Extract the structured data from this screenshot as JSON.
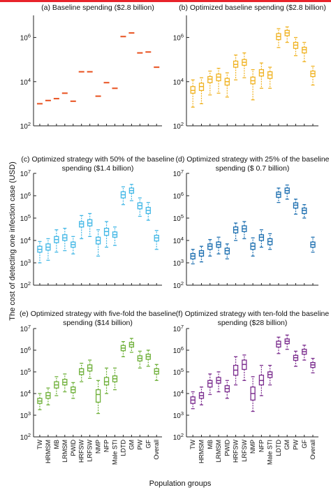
{
  "figure": {
    "ylabel": "The cost of detecting one infection case (USD)",
    "xlabel": "Population groups",
    "top_bar_color": "#e8232b"
  },
  "chart_data": [
    {
      "id": "a",
      "type": "scatter",
      "marker": "dash",
      "title": "(a) Baseline spending ($2.8 billion)",
      "color": "#e8501e",
      "ylog": true,
      "ylim": [
        100,
        10000000
      ],
      "yticks": [
        {
          "v": 100,
          "exp": "2"
        },
        {
          "v": 10000,
          "exp": "4"
        },
        {
          "v": 1000000,
          "exp": "6"
        }
      ],
      "categories": [
        "TW",
        "HRMSM",
        "MB",
        "LRMSM",
        "PWID",
        "HRFSW",
        "LRFSW",
        "NMP",
        "NFP",
        "Male STI",
        "LDTD",
        "GM",
        "PW",
        "GF",
        "Overall"
      ],
      "values": [
        1000,
        1400,
        1700,
        3000,
        1300,
        28000,
        28000,
        2200,
        9000,
        5000,
        1100000,
        1600000,
        200000,
        220000,
        45000
      ]
    },
    {
      "id": "b",
      "type": "boxplot",
      "title": "(b) Optimized baseline spending ($2.8 billion)",
      "color": "#f0b323",
      "ylog": true,
      "ylim": [
        100,
        10000000
      ],
      "yticks": [
        {
          "v": 100,
          "exp": "2"
        },
        {
          "v": 10000,
          "exp": "4"
        },
        {
          "v": 1000000,
          "exp": "6"
        }
      ],
      "categories": [
        "TW",
        "HRMSM",
        "MB",
        "LRMSM",
        "PWID",
        "HRFSW",
        "LRFSW",
        "NMP",
        "NFP",
        "Male STI",
        "LDTD",
        "GM",
        "PW",
        "GF",
        "Overall"
      ],
      "boxes": [
        [
          700,
          3000,
          4000,
          6000,
          12000
        ],
        [
          1000,
          4000,
          6000,
          8500,
          15000
        ],
        [
          2500,
          9000,
          13000,
          17000,
          30000
        ],
        [
          3000,
          11000,
          16000,
          22000,
          40000
        ],
        [
          2000,
          7000,
          10000,
          14000,
          25000
        ],
        [
          12000,
          45000,
          60000,
          85000,
          160000
        ],
        [
          15000,
          55000,
          75000,
          100000,
          200000
        ],
        [
          1500,
          8000,
          11000,
          16000,
          35000
        ],
        [
          5000,
          18000,
          25000,
          35000,
          70000
        ],
        [
          5000,
          14000,
          20000,
          28000,
          45000
        ],
        [
          350000,
          800000,
          1100000,
          1500000,
          2500000
        ],
        [
          600000,
          1200000,
          1600000,
          2100000,
          3000000
        ],
        [
          150000,
          320000,
          450000,
          600000,
          1000000
        ],
        [
          80000,
          200000,
          280000,
          360000,
          600000
        ],
        [
          7000,
          17000,
          23000,
          30000,
          50000
        ]
      ]
    },
    {
      "id": "c",
      "type": "boxplot",
      "title": "(c) Optimized strategy with 50% of the baseline spending ($1.4 billion)",
      "title_lines": [
        "(c) Optimized strategy with 50% of the baseline",
        "spending ($1.4 billion)"
      ],
      "color": "#44b8e6",
      "ylog": true,
      "ylim": [
        100,
        10000000
      ],
      "yticks": [
        {
          "v": 100,
          "exp": "2"
        },
        {
          "v": 1000,
          "exp": "3"
        },
        {
          "v": 10000,
          "exp": "4"
        },
        {
          "v": 100000,
          "exp": "5"
        },
        {
          "v": 1000000,
          "exp": "6"
        },
        {
          "v": 10000000,
          "exp": "7"
        }
      ],
      "categories": [
        "TW",
        "HRMSM",
        "MB",
        "LRMSM",
        "PWID",
        "HRFSW",
        "LRFSW",
        "NMP",
        "NFP",
        "Male STI",
        "LDTD",
        "GM",
        "PW",
        "GF",
        "Overall"
      ],
      "boxes": [
        [
          1000,
          3000,
          4000,
          5500,
          9000
        ],
        [
          1300,
          3700,
          5000,
          7000,
          12000
        ],
        [
          3000,
          8000,
          11000,
          15000,
          30000
        ],
        [
          3500,
          10000,
          13000,
          18000,
          35000
        ],
        [
          2500,
          5000,
          6500,
          8500,
          15000
        ],
        [
          12000,
          40000,
          55000,
          70000,
          130000
        ],
        [
          15000,
          45000,
          60000,
          85000,
          160000
        ],
        [
          2000,
          7000,
          10000,
          14000,
          30000
        ],
        [
          5000,
          17000,
          25000,
          35000,
          70000
        ],
        [
          6000,
          14000,
          18000,
          24000,
          40000
        ],
        [
          400000,
          800000,
          1100000,
          1500000,
          2500000
        ],
        [
          600000,
          1300000,
          1700000,
          2200000,
          3200000
        ],
        [
          120000,
          260000,
          360000,
          480000,
          800000
        ],
        [
          80000,
          160000,
          220000,
          300000,
          500000
        ],
        [
          4000,
          9500,
          13000,
          17000,
          28000
        ]
      ]
    },
    {
      "id": "d",
      "type": "boxplot",
      "title": "(d) Optimized strategy with 25% of the baseline spending ($ 0.7 billion)",
      "title_lines": [
        "(d) Optimized strategy with 25% of the baseline",
        "spending ($ 0.7 billion)"
      ],
      "color": "#1d6fb0",
      "ylog": true,
      "ylim": [
        100,
        10000000
      ],
      "yticks": [
        {
          "v": 100,
          "exp": "2"
        },
        {
          "v": 1000,
          "exp": "3"
        },
        {
          "v": 10000,
          "exp": "4"
        },
        {
          "v": 100000,
          "exp": "5"
        },
        {
          "v": 1000000,
          "exp": "6"
        },
        {
          "v": 10000000,
          "exp": "7"
        }
      ],
      "categories": [
        "TW",
        "HRMSM",
        "MB",
        "LRMSM",
        "PWID",
        "HRFSW",
        "LRFSW",
        "NMP",
        "NFP",
        "Male STI",
        "LDTD",
        "GM",
        "PW",
        "GF",
        "Overall"
      ],
      "boxes": [
        [
          900,
          1500,
          2000,
          2600,
          4000
        ],
        [
          1100,
          2000,
          2700,
          3500,
          5500
        ],
        [
          2000,
          4000,
          5500,
          7000,
          11000
        ],
        [
          2500,
          5000,
          6500,
          8500,
          14000
        ],
        [
          1500,
          2500,
          3500,
          4500,
          7000
        ],
        [
          10000,
          22000,
          30000,
          40000,
          60000
        ],
        [
          12000,
          25000,
          33000,
          45000,
          70000
        ],
        [
          2000,
          4000,
          5500,
          7500,
          13000
        ],
        [
          5000,
          10000,
          14000,
          18000,
          30000
        ],
        [
          4000,
          6500,
          9000,
          12000,
          20000
        ],
        [
          500000,
          850000,
          1150000,
          1450000,
          2200000
        ],
        [
          700000,
          1300000,
          1700000,
          2200000,
          3000000
        ],
        [
          150000,
          280000,
          380000,
          480000,
          700000
        ],
        [
          100000,
          160000,
          220000,
          280000,
          400000
        ],
        [
          3000,
          5000,
          6500,
          8500,
          14000
        ]
      ]
    },
    {
      "id": "e",
      "type": "boxplot",
      "title": "(e) Optimized strategy with five-fold the baseline spending ($14 billion)",
      "title_lines": [
        "(e) Optimized strategy with five-fold the baseline",
        "spending ($14 billion)"
      ],
      "color": "#6fb03a",
      "ylog": true,
      "ylim": [
        100,
        10000000
      ],
      "yticks": [
        {
          "v": 100,
          "exp": "2"
        },
        {
          "v": 1000,
          "exp": "3"
        },
        {
          "v": 10000,
          "exp": "4"
        },
        {
          "v": 100000,
          "exp": "5"
        },
        {
          "v": 1000000,
          "exp": "6"
        },
        {
          "v": 10000000,
          "exp": "7"
        }
      ],
      "categories": [
        "TW",
        "HRMSM",
        "MB",
        "LRMSM",
        "PWID",
        "HRFSW",
        "LRFSW",
        "NMP",
        "NFP",
        "Male STI",
        "LDTD",
        "GM",
        "PW",
        "GF",
        "Overall"
      ],
      "boxes": [
        [
          1800,
          3500,
          4500,
          6000,
          10000
        ],
        [
          3000,
          6000,
          8000,
          11000,
          18000
        ],
        [
          8000,
          18000,
          25000,
          35000,
          60000
        ],
        [
          12000,
          25000,
          33000,
          45000,
          80000
        ],
        [
          6000,
          11000,
          15000,
          20000,
          32000
        ],
        [
          35000,
          75000,
          100000,
          140000,
          250000
        ],
        [
          50000,
          110000,
          150000,
          210000,
          350000
        ],
        [
          1200,
          4000,
          9000,
          15000,
          40000
        ],
        [
          10000,
          25000,
          35000,
          55000,
          150000
        ],
        [
          15000,
          35000,
          48000,
          65000,
          150000
        ],
        [
          500000,
          950000,
          1250000,
          1650000,
          2500000
        ],
        [
          800000,
          1400000,
          1800000,
          2300000,
          3500000
        ],
        [
          150000,
          320000,
          420000,
          550000,
          900000
        ],
        [
          180000,
          380000,
          500000,
          650000,
          1000000
        ],
        [
          40000,
          80000,
          105000,
          140000,
          220000
        ]
      ]
    },
    {
      "id": "f",
      "type": "boxplot",
      "title": "(f) Optimized strategy with ten-fold the baseline spending ($28 billion)",
      "title_lines": [
        "(f) Optimized strategy with ten-fold the baseline",
        "spending ($28 billion)"
      ],
      "color": "#7b2d8e",
      "ylog": true,
      "ylim": [
        100,
        10000000
      ],
      "yticks": [
        {
          "v": 100,
          "exp": "2"
        },
        {
          "v": 1000,
          "exp": "3"
        },
        {
          "v": 10000,
          "exp": "4"
        },
        {
          "v": 100000,
          "exp": "5"
        },
        {
          "v": 1000000,
          "exp": "6"
        },
        {
          "v": 10000000,
          "exp": "7"
        }
      ],
      "categories": [
        "TW",
        "HRMSM",
        "MB",
        "LRMSM",
        "PWID",
        "HRFSW",
        "LRFSW",
        "NMP",
        "NFP",
        "Male STI",
        "LDTD",
        "GM",
        "PW",
        "GF",
        "Overall"
      ],
      "boxes": [
        [
          2000,
          3500,
          5000,
          7000,
          12000
        ],
        [
          3000,
          6000,
          8000,
          11000,
          20000
        ],
        [
          9000,
          20000,
          30000,
          40000,
          80000
        ],
        [
          12000,
          30000,
          40000,
          55000,
          100000
        ],
        [
          6000,
          12000,
          17000,
          23000,
          40000
        ],
        [
          25000,
          70000,
          120000,
          200000,
          500000
        ],
        [
          40000,
          130000,
          220000,
          350000,
          600000
        ],
        [
          1500,
          5000,
          10000,
          20000,
          60000
        ],
        [
          8000,
          25000,
          40000,
          70000,
          200000
        ],
        [
          25000,
          55000,
          75000,
          100000,
          200000
        ],
        [
          700000,
          1400000,
          1900000,
          2600000,
          4000000
        ],
        [
          1100000,
          2000000,
          2600000,
          3300000,
          5000000
        ],
        [
          180000,
          340000,
          450000,
          580000,
          900000
        ],
        [
          350000,
          650000,
          850000,
          1100000,
          1700000
        ],
        [
          90000,
          160000,
          210000,
          270000,
          420000
        ]
      ]
    }
  ]
}
